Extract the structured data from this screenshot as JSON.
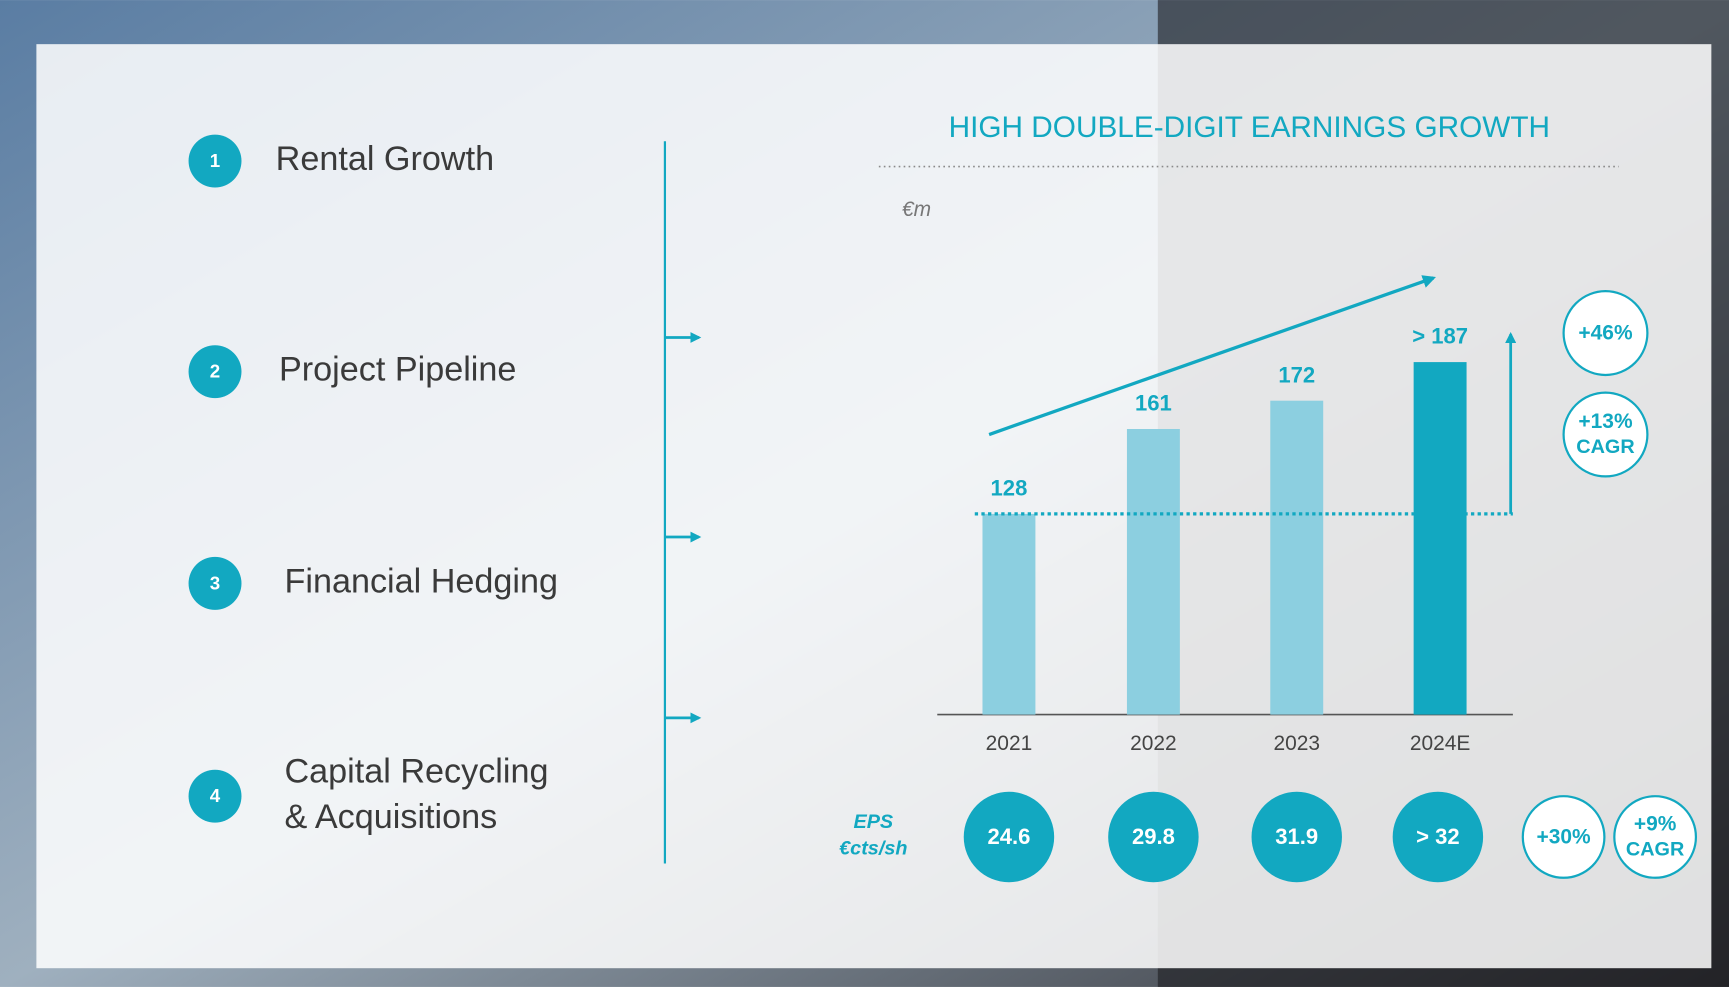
{
  "pillars": [
    {
      "number": "1",
      "label": [
        "Rental Growth"
      ]
    },
    {
      "number": "2",
      "label": [
        "Project Pipeline"
      ]
    },
    {
      "number": "3",
      "label": [
        "Financial Hedging"
      ]
    },
    {
      "number": "4",
      "label": [
        "Capital Recycling",
        "& Acquisitions"
      ]
    }
  ],
  "chart_data": {
    "type": "bar",
    "title": "HIGH DOUBLE-DIGIT EARNINGS GROWTH",
    "unit_label": "€m",
    "categories": [
      "2021",
      "2022",
      "2023",
      "2024E"
    ],
    "values": [
      128,
      161,
      172,
      187
    ],
    "value_labels": [
      "128",
      "161",
      "172",
      "> 187"
    ],
    "colors": [
      "#8ccfe0",
      "#8ccfe0",
      "#8ccfe0",
      "#12a8c1"
    ],
    "ylim": [
      50,
      200
    ],
    "growth_badges": [
      {
        "value": "+46%"
      },
      {
        "value": "+13%",
        "note": "CAGR"
      }
    ]
  },
  "eps": {
    "label": "EPS",
    "unit": "€cts/sh",
    "value_labels": [
      "24.6",
      "29.8",
      "31.9",
      "> 32"
    ],
    "growth_badges": [
      {
        "value": "+30%"
      },
      {
        "value": "+9%",
        "note": "CAGR"
      }
    ]
  }
}
